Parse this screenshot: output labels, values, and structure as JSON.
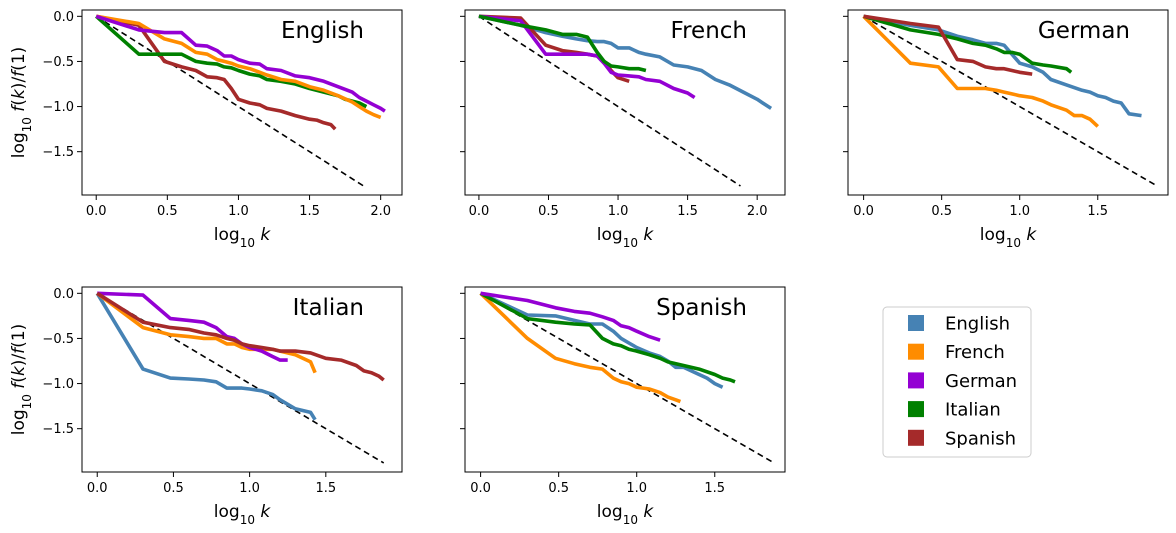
{
  "chart_data": {
    "type": "line",
    "xlabel_html": "log<tspan baseline-shift='sub' font-size='12'>10</tspan> <tspan font-style='italic'>k</tspan>",
    "ylabel_html": "log<tspan baseline-shift='sub' font-size='12'>10</tspan> <tspan font-style='italic'>f</tspan>(<tspan font-style='italic'>k</tspan>)/<tspan font-style='italic'>f</tspan>(1)",
    "colors": {
      "English": "#4682b4",
      "French": "#ff8c00",
      "German": "#9400d3",
      "Italian": "#008000",
      "Spanish": "#a52a2a"
    },
    "legend": [
      "English",
      "French",
      "German",
      "Italian",
      "Spanish"
    ],
    "legend_position": "empty bottom-right panel",
    "panels": [
      {
        "title": "English",
        "xlim": [
          -0.1,
          2.15
        ],
        "ylim": [
          -1.98,
          0.07
        ],
        "xticks": [
          0.0,
          0.5,
          1.0,
          1.5,
          2.0
        ],
        "yticks": [
          0.0,
          -0.5,
          -1.0,
          -1.5
        ],
        "reference_line": {
          "x": [
            0,
            1.88
          ],
          "y": [
            0,
            -1.88
          ]
        },
        "series": [
          {
            "name": "Spanish",
            "x": [
              0,
              0.3,
              0.48,
              0.6,
              0.7,
              0.78,
              0.85,
              0.9,
              0.95,
              1.0,
              1.08,
              1.15,
              1.2,
              1.3,
              1.4,
              1.5,
              1.55,
              1.6,
              1.65,
              1.68
            ],
            "y": [
              0,
              -0.1,
              -0.5,
              -0.56,
              -0.6,
              -0.67,
              -0.68,
              -0.7,
              -0.8,
              -0.92,
              -0.96,
              -0.98,
              -1.02,
              -1.05,
              -1.1,
              -1.14,
              -1.15,
              -1.18,
              -1.2,
              -1.25
            ]
          },
          {
            "name": "Italian",
            "x": [
              0,
              0.3,
              0.48,
              0.6,
              0.7,
              0.78,
              0.85,
              0.9,
              0.95,
              1.0,
              1.08,
              1.15,
              1.2,
              1.3,
              1.4,
              1.5,
              1.6,
              1.7,
              1.75,
              1.8,
              1.85,
              1.9
            ],
            "y": [
              0,
              -0.42,
              -0.42,
              -0.42,
              -0.5,
              -0.52,
              -0.53,
              -0.56,
              -0.57,
              -0.6,
              -0.64,
              -0.66,
              -0.7,
              -0.72,
              -0.75,
              -0.8,
              -0.84,
              -0.88,
              -0.92,
              -0.94,
              -0.96,
              -1.0
            ]
          },
          {
            "name": "French",
            "x": [
              0,
              0.3,
              0.48,
              0.6,
              0.7,
              0.78,
              0.85,
              0.9,
              0.95,
              1.0,
              1.08,
              1.15,
              1.2,
              1.3,
              1.4,
              1.5,
              1.6,
              1.7,
              1.8,
              1.85,
              1.9,
              1.95,
              2.0
            ],
            "y": [
              0,
              -0.08,
              -0.25,
              -0.3,
              -0.4,
              -0.42,
              -0.48,
              -0.5,
              -0.52,
              -0.55,
              -0.58,
              -0.62,
              -0.65,
              -0.7,
              -0.72,
              -0.78,
              -0.82,
              -0.88,
              -0.95,
              -1.0,
              -1.05,
              -1.09,
              -1.12
            ]
          },
          {
            "name": "German",
            "x": [
              0,
              0.3,
              0.48,
              0.6,
              0.7,
              0.78,
              0.85,
              0.9,
              0.95,
              1.0,
              1.08,
              1.15,
              1.2,
              1.3,
              1.4,
              1.5,
              1.6,
              1.7,
              1.8,
              1.85,
              1.9,
              1.95,
              2.0,
              2.03
            ],
            "y": [
              0,
              -0.15,
              -0.18,
              -0.18,
              -0.32,
              -0.33,
              -0.38,
              -0.44,
              -0.44,
              -0.48,
              -0.52,
              -0.53,
              -0.58,
              -0.6,
              -0.66,
              -0.68,
              -0.72,
              -0.78,
              -0.84,
              -0.9,
              -0.94,
              -0.98,
              -1.02,
              -1.05
            ]
          }
        ]
      },
      {
        "title": "French",
        "xlim": [
          -0.1,
          2.2
        ],
        "ylim": [
          -1.98,
          0.07
        ],
        "xticks": [
          0.0,
          0.5,
          1.0,
          1.5,
          2.0
        ],
        "yticks": [
          0.0,
          -0.5,
          -1.0,
          -1.5
        ],
        "reference_line": {
          "x": [
            0,
            1.88
          ],
          "y": [
            0,
            -1.88
          ]
        },
        "series": [
          {
            "name": "English",
            "x": [
              0,
              0.3,
              0.48,
              0.6,
              0.7,
              0.78,
              0.85,
              0.9,
              0.95,
              1.0,
              1.08,
              1.15,
              1.2,
              1.3,
              1.4,
              1.5,
              1.6,
              1.7,
              1.8,
              1.9,
              2.0,
              2.05,
              2.1
            ],
            "y": [
              0,
              -0.1,
              -0.18,
              -0.22,
              -0.25,
              -0.27,
              -0.28,
              -0.28,
              -0.3,
              -0.35,
              -0.35,
              -0.4,
              -0.42,
              -0.45,
              -0.54,
              -0.56,
              -0.6,
              -0.7,
              -0.76,
              -0.84,
              -0.92,
              -0.97,
              -1.02
            ]
          },
          {
            "name": "Spanish",
            "x": [
              0,
              0.3,
              0.48,
              0.6,
              0.7,
              0.78,
              0.85,
              0.9,
              0.95,
              1.0,
              1.08
            ],
            "y": [
              0,
              -0.02,
              -0.32,
              -0.38,
              -0.4,
              -0.42,
              -0.44,
              -0.5,
              -0.6,
              -0.68,
              -0.72
            ]
          },
          {
            "name": "German",
            "x": [
              0,
              0.3,
              0.48,
              0.6,
              0.7,
              0.78,
              0.85,
              0.9,
              0.95,
              1.0,
              1.08,
              1.15,
              1.2,
              1.3,
              1.4,
              1.5,
              1.55
            ],
            "y": [
              0,
              -0.05,
              -0.42,
              -0.42,
              -0.42,
              -0.42,
              -0.44,
              -0.52,
              -0.62,
              -0.65,
              -0.66,
              -0.67,
              -0.7,
              -0.72,
              -0.8,
              -0.85,
              -0.9
            ]
          },
          {
            "name": "Italian",
            "x": [
              0,
              0.3,
              0.48,
              0.6,
              0.7,
              0.78,
              0.85,
              0.9,
              0.95,
              1.0,
              1.08,
              1.15,
              1.2
            ],
            "y": [
              0,
              -0.1,
              -0.15,
              -0.2,
              -0.2,
              -0.23,
              -0.4,
              -0.5,
              -0.55,
              -0.56,
              -0.58,
              -0.58,
              -0.6
            ]
          }
        ]
      },
      {
        "title": "German",
        "xlim": [
          -0.1,
          1.95
        ],
        "ylim": [
          -1.98,
          0.07
        ],
        "xticks": [
          0.0,
          0.5,
          1.0,
          1.5
        ],
        "yticks": [
          0.0,
          -0.5,
          -1.0,
          -1.5
        ],
        "reference_line": {
          "x": [
            0,
            1.88
          ],
          "y": [
            0,
            -1.88
          ]
        },
        "series": [
          {
            "name": "English",
            "x": [
              0,
              0.3,
              0.48,
              0.6,
              0.7,
              0.78,
              0.85,
              0.9,
              0.95,
              1.0,
              1.08,
              1.15,
              1.2,
              1.3,
              1.4,
              1.45,
              1.5,
              1.55,
              1.6,
              1.65,
              1.7,
              1.78
            ],
            "y": [
              0,
              -0.1,
              -0.15,
              -0.22,
              -0.26,
              -0.3,
              -0.3,
              -0.32,
              -0.42,
              -0.52,
              -0.56,
              -0.62,
              -0.7,
              -0.76,
              -0.82,
              -0.84,
              -0.88,
              -0.9,
              -0.94,
              -0.96,
              -1.08,
              -1.1
            ]
          },
          {
            "name": "French",
            "x": [
              0,
              0.3,
              0.48,
              0.6,
              0.7,
              0.78,
              0.85,
              0.9,
              0.95,
              1.0,
              1.08,
              1.15,
              1.2,
              1.3,
              1.35,
              1.4,
              1.45,
              1.5
            ],
            "y": [
              0,
              -0.52,
              -0.56,
              -0.8,
              -0.8,
              -0.8,
              -0.82,
              -0.84,
              -0.86,
              -0.88,
              -0.9,
              -0.94,
              -0.98,
              -1.04,
              -1.1,
              -1.1,
              -1.14,
              -1.22
            ]
          },
          {
            "name": "Italian",
            "x": [
              0,
              0.3,
              0.48,
              0.6,
              0.7,
              0.78,
              0.85,
              0.9,
              0.95,
              1.0,
              1.08,
              1.15,
              1.2,
              1.3,
              1.33
            ],
            "y": [
              0,
              -0.15,
              -0.2,
              -0.25,
              -0.3,
              -0.32,
              -0.36,
              -0.4,
              -0.4,
              -0.42,
              -0.52,
              -0.54,
              -0.55,
              -0.58,
              -0.62
            ]
          },
          {
            "name": "Spanish",
            "x": [
              0,
              0.3,
              0.48,
              0.6,
              0.7,
              0.78,
              0.85,
              0.9,
              0.95,
              1.0,
              1.08
            ],
            "y": [
              0,
              -0.08,
              -0.12,
              -0.48,
              -0.5,
              -0.56,
              -0.58,
              -0.58,
              -0.6,
              -0.62,
              -0.64
            ]
          }
        ]
      },
      {
        "title": "Italian",
        "xlim": [
          -0.1,
          2.0
        ],
        "ylim": [
          -1.98,
          0.07
        ],
        "xticks": [
          0.0,
          0.5,
          1.0,
          1.5
        ],
        "yticks": [
          0.0,
          -0.5,
          -1.0,
          -1.5
        ],
        "reference_line": {
          "x": [
            0,
            1.88
          ],
          "y": [
            0,
            -1.88
          ]
        },
        "series": [
          {
            "name": "English",
            "x": [
              0,
              0.3,
              0.48,
              0.6,
              0.7,
              0.78,
              0.85,
              0.9,
              0.95,
              1.0,
              1.08,
              1.15,
              1.2,
              1.3,
              1.4,
              1.43
            ],
            "y": [
              0,
              -0.84,
              -0.94,
              -0.95,
              -0.96,
              -0.98,
              -1.05,
              -1.05,
              -1.05,
              -1.06,
              -1.08,
              -1.12,
              -1.18,
              -1.28,
              -1.32,
              -1.4
            ]
          },
          {
            "name": "French",
            "x": [
              0,
              0.3,
              0.48,
              0.6,
              0.7,
              0.78,
              0.85,
              0.9,
              0.95,
              1.0,
              1.08,
              1.15,
              1.2,
              1.3,
              1.4,
              1.43
            ],
            "y": [
              0,
              -0.38,
              -0.46,
              -0.48,
              -0.5,
              -0.5,
              -0.56,
              -0.56,
              -0.6,
              -0.62,
              -0.62,
              -0.62,
              -0.64,
              -0.68,
              -0.76,
              -0.88
            ]
          },
          {
            "name": "German",
            "x": [
              0,
              0.3,
              0.48,
              0.6,
              0.7,
              0.78,
              0.85,
              0.9,
              0.95,
              1.0,
              1.08,
              1.15,
              1.2,
              1.25
            ],
            "y": [
              0,
              -0.02,
              -0.28,
              -0.3,
              -0.32,
              -0.38,
              -0.48,
              -0.5,
              -0.56,
              -0.6,
              -0.64,
              -0.7,
              -0.74,
              -0.74
            ]
          },
          {
            "name": "Spanish",
            "x": [
              0,
              0.3,
              0.48,
              0.6,
              0.7,
              0.78,
              0.85,
              0.9,
              0.95,
              1.0,
              1.08,
              1.15,
              1.2,
              1.3,
              1.4,
              1.5,
              1.6,
              1.7,
              1.75,
              1.8,
              1.85,
              1.88
            ],
            "y": [
              0,
              -0.32,
              -0.38,
              -0.4,
              -0.44,
              -0.46,
              -0.5,
              -0.52,
              -0.56,
              -0.58,
              -0.6,
              -0.62,
              -0.64,
              -0.64,
              -0.66,
              -0.72,
              -0.74,
              -0.8,
              -0.86,
              -0.88,
              -0.92,
              -0.96
            ]
          }
        ]
      },
      {
        "title": "Spanish",
        "xlim": [
          -0.1,
          1.95
        ],
        "ylim": [
          -1.98,
          0.07
        ],
        "xticks": [
          0.0,
          0.5,
          1.0,
          1.5
        ],
        "yticks": [
          0.0,
          -0.5,
          -1.0,
          -1.5
        ],
        "reference_line": {
          "x": [
            0,
            1.88
          ],
          "y": [
            0,
            -1.88
          ]
        },
        "series": [
          {
            "name": "English",
            "x": [
              0,
              0.3,
              0.48,
              0.6,
              0.7,
              0.78,
              0.85,
              0.9,
              0.95,
              1.0,
              1.08,
              1.15,
              1.2,
              1.25,
              1.3,
              1.4,
              1.45,
              1.5,
              1.55
            ],
            "y": [
              0,
              -0.24,
              -0.25,
              -0.3,
              -0.34,
              -0.34,
              -0.42,
              -0.5,
              -0.55,
              -0.6,
              -0.66,
              -0.7,
              -0.75,
              -0.82,
              -0.82,
              -0.9,
              -0.94,
              -1.0,
              -1.04
            ]
          },
          {
            "name": "French",
            "x": [
              0,
              0.3,
              0.48,
              0.6,
              0.7,
              0.78,
              0.85,
              0.9,
              0.95,
              1.0,
              1.08,
              1.15,
              1.2,
              1.25,
              1.28
            ],
            "y": [
              0,
              -0.5,
              -0.72,
              -0.78,
              -0.82,
              -0.84,
              -0.94,
              -0.98,
              -1.0,
              -1.04,
              -1.06,
              -1.1,
              -1.15,
              -1.18,
              -1.2
            ]
          },
          {
            "name": "Italian",
            "x": [
              0,
              0.3,
              0.48,
              0.6,
              0.7,
              0.78,
              0.85,
              0.9,
              0.95,
              1.0,
              1.08,
              1.15,
              1.2,
              1.3,
              1.4,
              1.5,
              1.55,
              1.6,
              1.63
            ],
            "y": [
              0,
              -0.28,
              -0.32,
              -0.34,
              -0.35,
              -0.5,
              -0.56,
              -0.58,
              -0.62,
              -0.64,
              -0.68,
              -0.72,
              -0.76,
              -0.8,
              -0.84,
              -0.9,
              -0.94,
              -0.96,
              -0.98
            ]
          },
          {
            "name": "German",
            "x": [
              0,
              0.3,
              0.48,
              0.6,
              0.7,
              0.78,
              0.85,
              0.9,
              0.95,
              1.0,
              1.08,
              1.15
            ],
            "y": [
              0,
              -0.08,
              -0.16,
              -0.2,
              -0.22,
              -0.26,
              -0.3,
              -0.36,
              -0.38,
              -0.42,
              -0.48,
              -0.52
            ]
          }
        ]
      }
    ]
  }
}
